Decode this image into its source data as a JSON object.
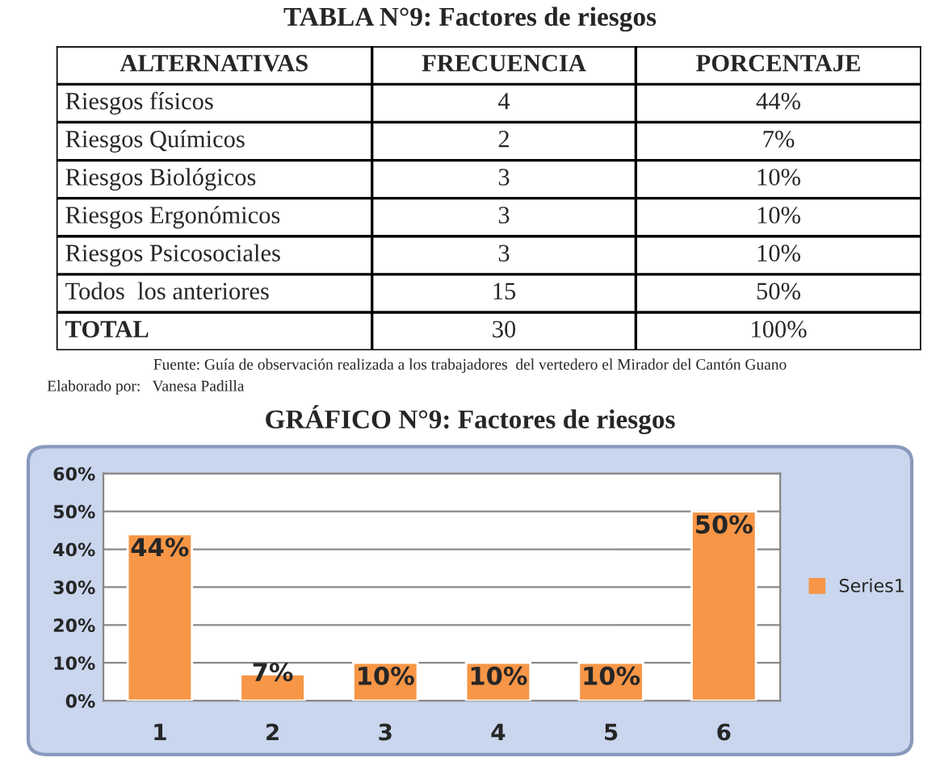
{
  "chart_data": [
    {
      "type": "other",
      "title": "TABLA N°9: Factores de riesgos",
      "annotations": [
        "ALTERNATIVAS",
        "FRECUENCIA",
        "PORCENTAJE",
        "Riesgos físicos",
        "4",
        "44%",
        "Riesgos Químicos",
        "2",
        "7%",
        "Riesgos Biológicos",
        "3",
        "10%",
        "Riesgos Ergonómicos",
        "3",
        "10%",
        "Riesgos Psicosociales",
        "3",
        "10%",
        "Todos  los anteriores",
        "15",
        "50%",
        "TOTAL",
        "30",
        "100%",
        "Fuente: Guía de observación realizada a los trabajadores  del vertedero el Mirador del Cantón Guano",
        "Elaborado por:   Vanesa Padilla"
      ]
    },
    {
      "type": "bar",
      "title": "GRÁFICO N°9: Factores de riesgos",
      "categories": [
        "1",
        "2",
        "3",
        "4",
        "5",
        "6"
      ],
      "series": [
        {
          "name": "Series1",
          "color": "#f79646",
          "values": [
            44,
            7,
            10,
            10,
            10,
            50
          ]
        }
      ],
      "value_labels": [
        "44%",
        "7%",
        "10%",
        "10%",
        "10%",
        "50%"
      ],
      "ylim": [
        0,
        60
      ],
      "yticks": [
        {
          "value": 0,
          "label": "0%"
        },
        {
          "value": 10,
          "label": "10%"
        },
        {
          "value": 20,
          "label": "20%"
        },
        {
          "value": 30,
          "label": "30%"
        },
        {
          "value": 40,
          "label": "40%"
        },
        {
          "value": 50,
          "label": "50%"
        },
        {
          "value": 60,
          "label": "60%"
        }
      ],
      "grid": "y",
      "legend": "right"
    }
  ]
}
